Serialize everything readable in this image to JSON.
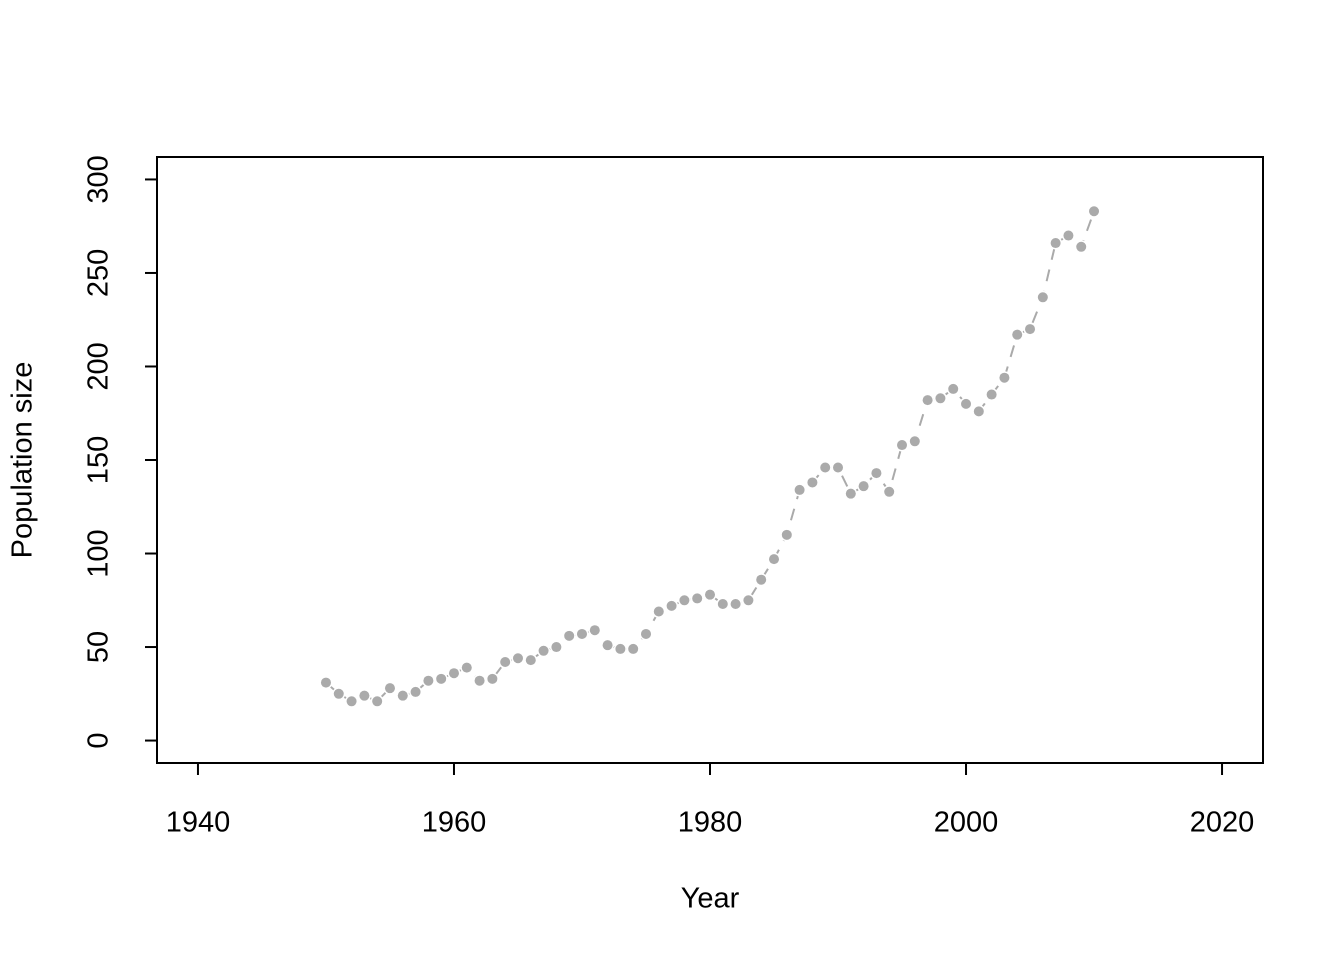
{
  "chart_data": {
    "type": "line",
    "x_label": "Year",
    "y_label": "Population size",
    "x": [
      1950,
      1951,
      1952,
      1953,
      1954,
      1955,
      1956,
      1957,
      1958,
      1959,
      1960,
      1961,
      1962,
      1963,
      1964,
      1965,
      1966,
      1967,
      1968,
      1969,
      1970,
      1971,
      1972,
      1973,
      1974,
      1975,
      1976,
      1977,
      1978,
      1979,
      1980,
      1981,
      1982,
      1983,
      1984,
      1985,
      1986,
      1987,
      1988,
      1989,
      1990,
      1991,
      1992,
      1993,
      1994,
      1995,
      1996,
      1997,
      1998,
      1999,
      2000,
      2001,
      2002,
      2003,
      2004,
      2005,
      2006,
      2007,
      2008,
      2009,
      2010
    ],
    "series": [
      {
        "color": "#aaaaaa",
        "values": [
          31,
          25,
          21,
          24,
          21,
          28,
          24,
          26,
          32,
          33,
          36,
          39,
          32,
          33,
          42,
          44,
          43,
          48,
          50,
          56,
          57,
          59,
          51,
          49,
          49,
          57,
          69,
          72,
          75,
          76,
          78,
          73,
          73,
          75,
          86,
          97,
          110,
          134,
          138,
          146,
          146,
          132,
          136,
          143,
          133,
          158,
          160,
          182,
          183,
          188,
          180,
          176,
          185,
          194,
          217,
          220,
          237,
          266,
          270,
          264,
          283
        ]
      }
    ],
    "xlim": [
      1936.8,
      2023.2
    ],
    "xticks": [
      1940,
      1960,
      1980,
      2000,
      2020
    ],
    "ylim": [
      -12,
      312
    ],
    "yticks": [
      0,
      50,
      100,
      150,
      200,
      250,
      300
    ]
  }
}
